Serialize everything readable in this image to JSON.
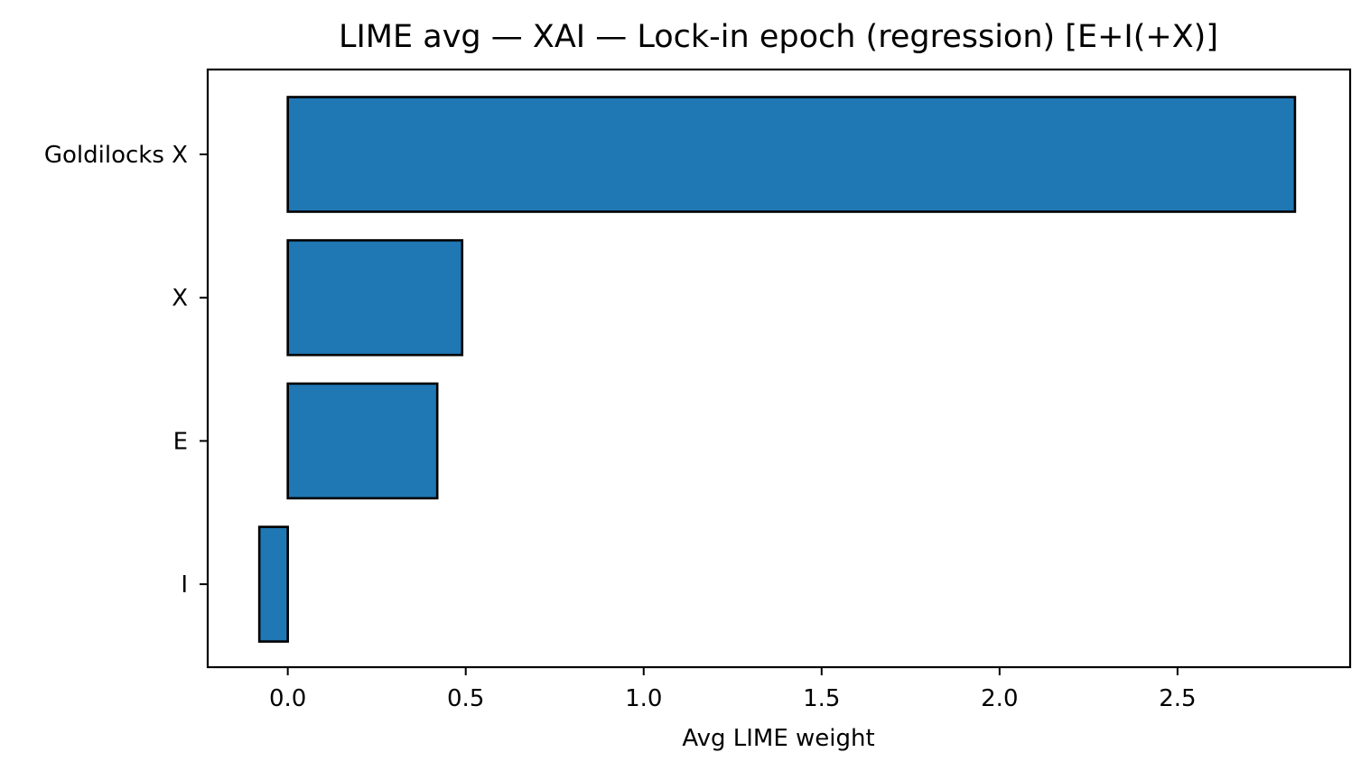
{
  "chart_data": {
    "type": "bar",
    "orientation": "horizontal",
    "title": "LIME avg — XAI — Lock-in epoch (regression) [E+I(+X)]",
    "xlabel": "Avg LIME weight",
    "ylabel": "",
    "categories": [
      "Goldilocks X",
      "X",
      "E",
      "I"
    ],
    "values": [
      2.83,
      0.49,
      0.42,
      -0.08
    ],
    "xlim": [
      -0.225,
      2.985
    ],
    "xticks": [
      {
        "value": 0.0,
        "label": "0.0"
      },
      {
        "value": 0.5,
        "label": "0.5"
      },
      {
        "value": 1.0,
        "label": "1.0"
      },
      {
        "value": 1.5,
        "label": "1.5"
      },
      {
        "value": 2.0,
        "label": "2.0"
      },
      {
        "value": 2.5,
        "label": "2.5"
      }
    ],
    "bar_color": "#1f77b4",
    "edge_color": "#000000",
    "grid": false,
    "legend": "none"
  }
}
